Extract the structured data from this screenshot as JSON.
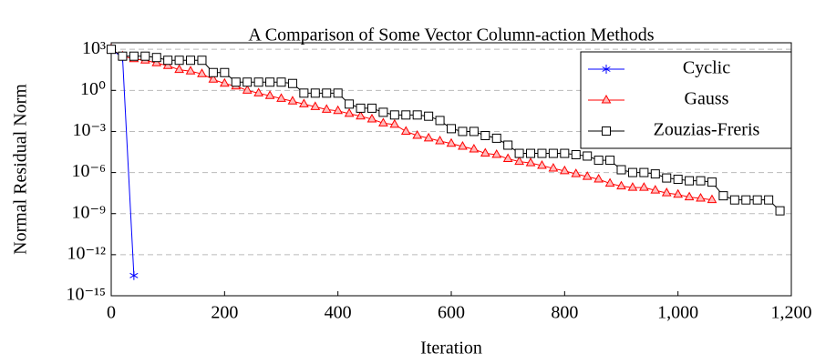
{
  "chart_data": {
    "type": "line",
    "title": "A Comparison of Some Vector Column-action Methods",
    "xlabel": "Iteration",
    "ylabel": "Normal Residual Norm",
    "xlim": [
      0,
      1200
    ],
    "xticks": [
      0,
      200,
      400,
      600,
      800,
      {
        "value": 1000,
        "label": "1,000"
      },
      {
        "value": 1200,
        "label": "1,200"
      }
    ],
    "ylim": [
      1e-15,
      3000
    ],
    "yscale": "log",
    "yticks": [
      {
        "value": 1e-15,
        "label": "10⁻¹⁵"
      },
      {
        "value": 1e-12,
        "label": "10⁻¹²"
      },
      {
        "value": 1e-09,
        "label": "10⁻⁹"
      },
      {
        "value": 1e-06,
        "label": "10⁻⁶"
      },
      {
        "value": 0.001,
        "label": "10⁻³"
      },
      {
        "value": 1,
        "label": "10⁰"
      },
      {
        "value": 1000,
        "label": "10³"
      }
    ],
    "grid": true,
    "legend": "top-right",
    "series": [
      {
        "name": "Cyclic",
        "color": "#0000ff",
        "marker": "star",
        "x": [
          0,
          20,
          40
        ],
        "values": [
          1000,
          250,
          3e-14
        ]
      },
      {
        "name": "Gauss",
        "color": "#ff0000",
        "marker": "triangle",
        "x": [
          0,
          20,
          40,
          60,
          80,
          100,
          120,
          140,
          160,
          180,
          200,
          220,
          240,
          260,
          280,
          300,
          320,
          340,
          360,
          380,
          400,
          420,
          440,
          460,
          480,
          500,
          520,
          540,
          560,
          580,
          600,
          620,
          640,
          660,
          680,
          700,
          720,
          740,
          760,
          780,
          800,
          820,
          840,
          860,
          880,
          900,
          920,
          940,
          960,
          980,
          1000,
          1020,
          1040,
          1060
        ],
        "values": [
          1000,
          316,
          200,
          158,
          100,
          63,
          32,
          25,
          16,
          6.3,
          3.2,
          2,
          1,
          0.63,
          0.4,
          0.25,
          0.16,
          0.1,
          0.063,
          0.04,
          0.032,
          0.02,
          0.013,
          0.0079,
          0.004,
          0.0032,
          0.001,
          0.0005,
          0.00032,
          0.0002,
          0.00013,
          7.9e-05,
          5e-05,
          2.5e-05,
          2e-05,
          1e-05,
          6.3e-06,
          5e-06,
          3.2e-06,
          2e-06,
          1.3e-06,
          7.9e-07,
          5e-07,
          3.2e-07,
          1.6e-07,
          1e-07,
          7.9e-08,
          7.9e-08,
          5e-08,
          3.2e-08,
          2.5e-08,
          1.6e-08,
          1.3e-08,
          1e-08
        ]
      },
      {
        "name": "Zouzias-Freris",
        "color": "#000000",
        "marker": "square",
        "x": [
          0,
          20,
          40,
          60,
          80,
          100,
          120,
          140,
          160,
          180,
          200,
          220,
          240,
          260,
          280,
          300,
          320,
          340,
          360,
          380,
          400,
          420,
          440,
          460,
          480,
          500,
          520,
          540,
          560,
          580,
          600,
          620,
          640,
          660,
          680,
          700,
          720,
          740,
          760,
          780,
          800,
          820,
          840,
          860,
          880,
          900,
          920,
          940,
          960,
          980,
          1000,
          1020,
          1040,
          1060,
          1080,
          1100,
          1120,
          1140,
          1160,
          1180
        ],
        "values": [
          1000,
          316,
          316,
          316,
          251,
          158,
          158,
          158,
          158,
          20,
          20,
          4,
          4,
          4,
          4,
          4,
          3.2,
          0.63,
          0.63,
          0.63,
          0.63,
          0.1,
          0.05,
          0.05,
          0.025,
          0.016,
          0.016,
          0.016,
          0.013,
          0.0063,
          0.0016,
          0.001,
          0.001,
          0.0005,
          0.00032,
          0.0001,
          2.5e-05,
          2.5e-05,
          2.5e-05,
          2.5e-05,
          2.5e-05,
          2e-05,
          1.6e-05,
          7.9e-06,
          7.9e-06,
          1.6e-06,
          1e-06,
          1e-06,
          7.9e-07,
          4e-07,
          3.2e-07,
          2.5e-07,
          2.5e-07,
          2e-07,
          2e-08,
          1e-08,
          1e-08,
          1e-08,
          1e-08,
          1.6e-09
        ]
      }
    ]
  }
}
